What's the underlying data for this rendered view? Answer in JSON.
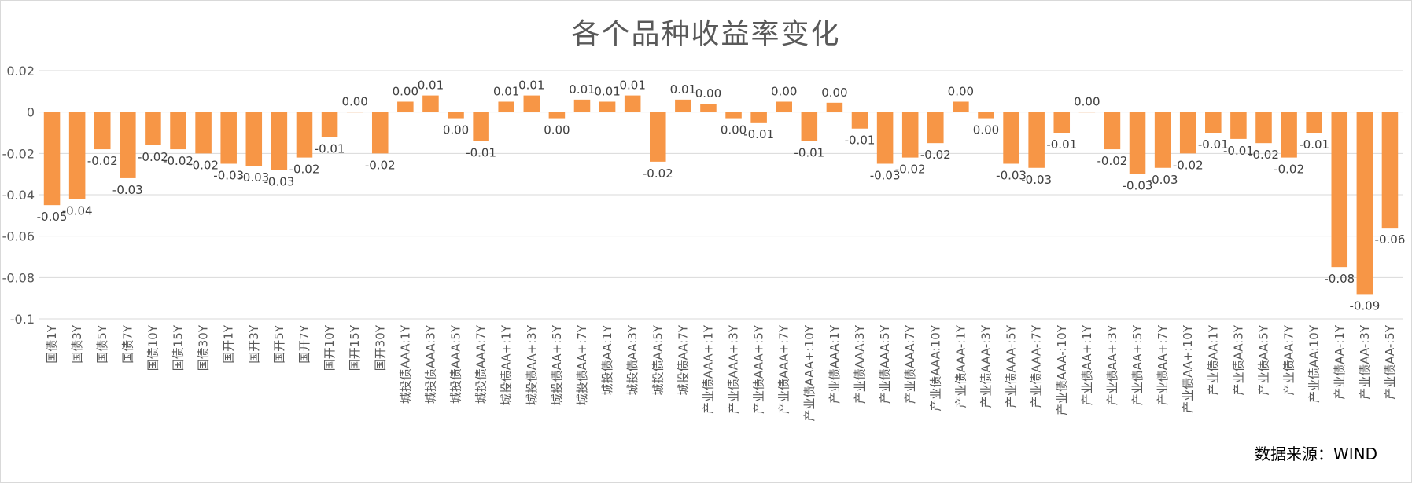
{
  "chart_data": {
    "type": "bar",
    "title": "各个品种收益率变化",
    "xlabel": "",
    "ylabel": "",
    "ylim": [
      -0.1,
      0.02
    ],
    "yticks": [
      0.02,
      0,
      -0.02,
      -0.04,
      -0.06,
      -0.08,
      -0.1
    ],
    "ytick_labels": [
      "0.02",
      "0",
      "-0.02",
      "-0.04",
      "-0.06",
      "-0.08",
      "-0.1"
    ],
    "grid": true,
    "legend": "none",
    "bar_color": "#F79646",
    "categories": [
      "国债1Y",
      "国债3Y",
      "国债5Y",
      "国债7Y",
      "国债10Y",
      "国债15Y",
      "国债30Y",
      "国开1Y",
      "国开3Y",
      "国开5Y",
      "国开7Y",
      "国开10Y",
      "国开15Y",
      "国开30Y",
      "城投债AAA:1Y",
      "城投债AAA:3Y",
      "城投债AAA:5Y",
      "城投债AAA:7Y",
      "城投债AA+:1Y",
      "城投债AA+:3Y",
      "城投债AA+:5Y",
      "城投债AA+:7Y",
      "城投债AA:1Y",
      "城投债AA:3Y",
      "城投债AA:5Y",
      "城投债AA:7Y",
      "产业债AAA+:1Y",
      "产业债AAA+:3Y",
      "产业债AAA+:5Y",
      "产业债AAA+:7Y",
      "产业债AAA+:10Y",
      "产业债AAA:1Y",
      "产业债AAA:3Y",
      "产业债AAA:5Y",
      "产业债AAA:7Y",
      "产业债AAA:10Y",
      "产业债AAA-:1Y",
      "产业债AAA-:3Y",
      "产业债AAA-:5Y",
      "产业债AAA-:7Y",
      "产业债AAA-:10Y",
      "产业债AA+:1Y",
      "产业债AA+:3Y",
      "产业债AA+:5Y",
      "产业债AA+:7Y",
      "产业债AA+:10Y",
      "产业债AA:1Y",
      "产业债AA:3Y",
      "产业债AA:5Y",
      "产业债AA:7Y",
      "产业债AA:10Y",
      "产业债AA-:1Y",
      "产业债AA-:3Y",
      "产业债AA-:5Y"
    ],
    "values": [
      -0.045,
      -0.042,
      -0.018,
      -0.032,
      -0.016,
      -0.018,
      -0.02,
      -0.025,
      -0.026,
      -0.028,
      -0.022,
      -0.012,
      0.0,
      -0.02,
      0.005,
      0.008,
      -0.003,
      -0.014,
      0.005,
      0.008,
      -0.003,
      0.006,
      0.005,
      0.008,
      -0.024,
      0.006,
      0.004,
      -0.003,
      -0.005,
      0.005,
      -0.014,
      0.0045,
      -0.008,
      -0.025,
      -0.022,
      -0.015,
      0.005,
      -0.003,
      -0.025,
      -0.027,
      -0.01,
      0.0,
      -0.018,
      -0.03,
      -0.027,
      -0.02,
      -0.01,
      -0.013,
      -0.015,
      -0.022,
      -0.01,
      -0.075,
      -0.088,
      -0.056
    ],
    "data_labels": [
      "-0.05",
      "-0.04",
      "-0.02",
      "-0.03",
      "-0.02",
      "-0.02",
      "-0.02",
      "-0.03",
      "-0.03",
      "-0.03",
      "-0.02",
      "-0.01",
      "0.00",
      "-0.02",
      "0.00",
      "0.01",
      "0.00",
      "-0.01",
      "0.01",
      "0.01",
      "0.00",
      "0.01",
      "0.01",
      "0.01",
      "-0.02",
      "0.01",
      "0.00",
      "0.00",
      "-0.01",
      "0.00",
      "-0.01",
      "0.00",
      "-0.01",
      "-0.03",
      "-0.02",
      "-0.02",
      "0.00",
      "0.00",
      "-0.03",
      "-0.03",
      "-0.01",
      "0.00",
      "-0.02",
      "-0.03",
      "-0.03",
      "-0.02",
      "-0.01",
      "-0.01",
      "-0.02",
      "-0.02",
      "-0.01",
      "-0.08",
      "-0.09",
      "-0.06"
    ]
  },
  "source_note": "数据来源：WIND"
}
